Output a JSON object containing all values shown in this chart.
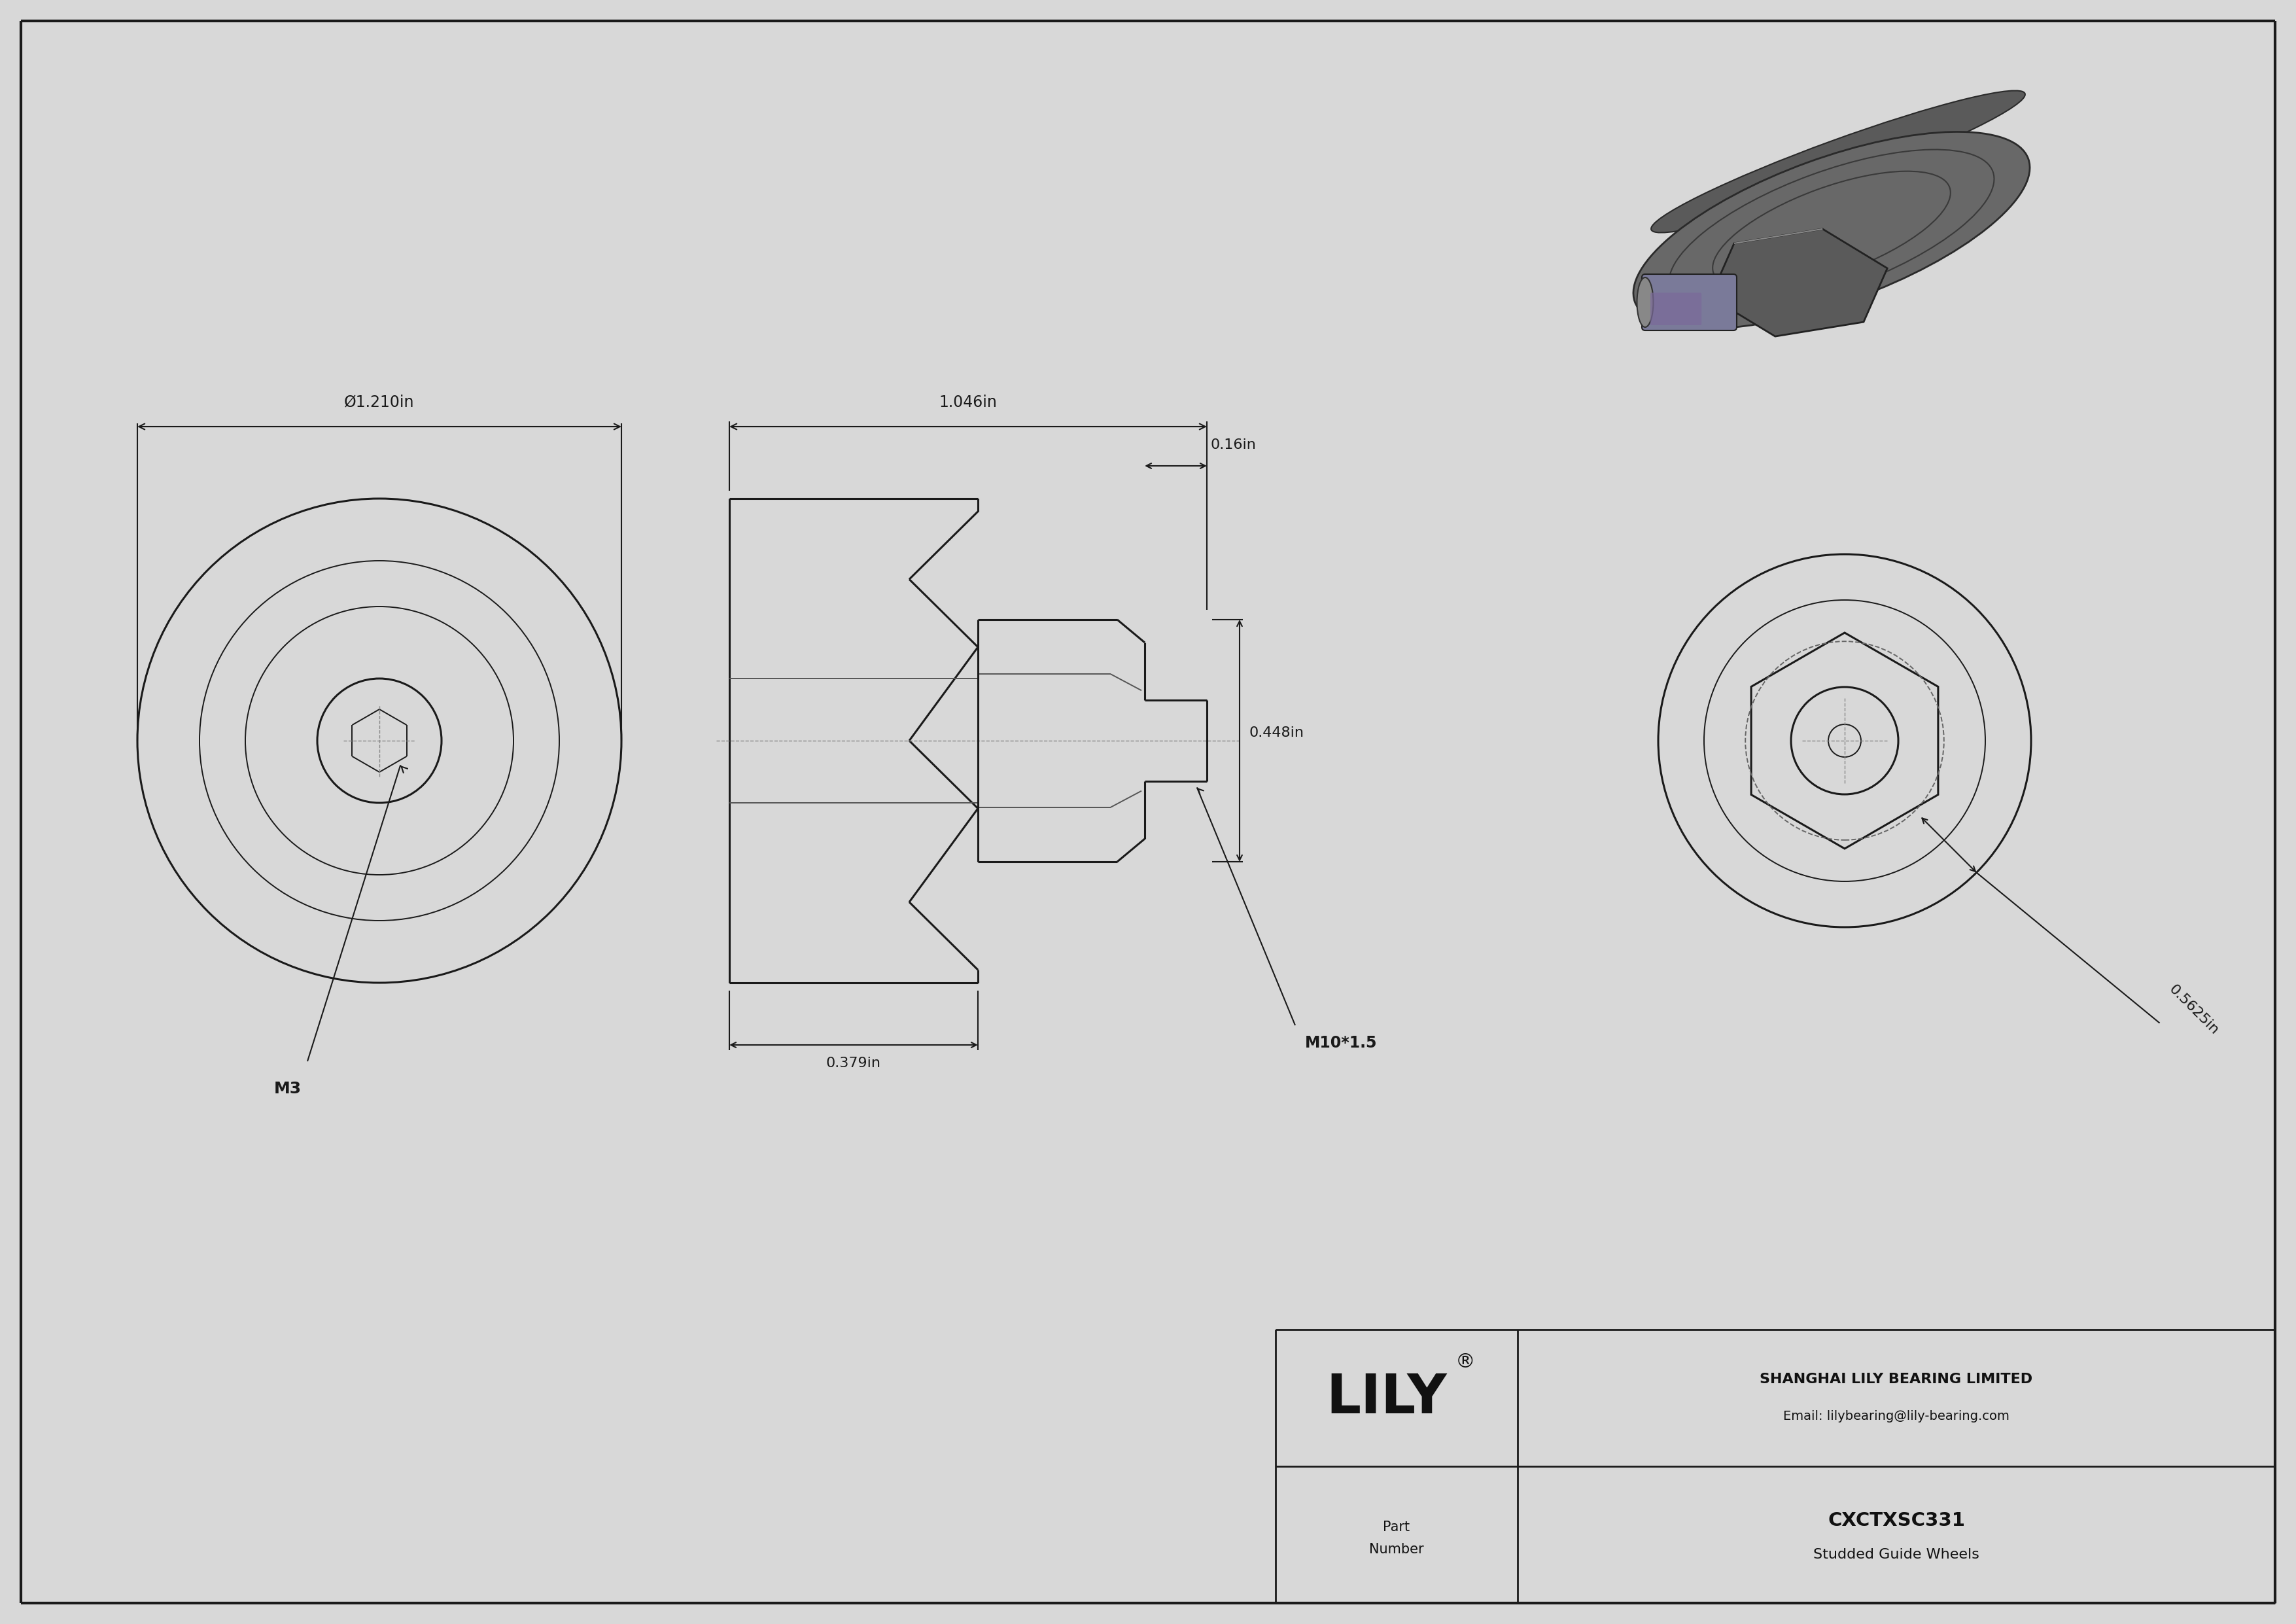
{
  "bg_color": "#d8d8d8",
  "drawing_bg": "#ffffff",
  "line_color": "#1a1a1a",
  "dim_color": "#1a1a1a",
  "company": "SHANGHAI LILY BEARING LIMITED",
  "email": "Email: lilybearing@lily-bearing.com",
  "part_number": "CXCTXSC331",
  "part_desc": "Studded Guide Wheels",
  "dim_diameter": "Ø1.210in",
  "dim_length": "1.046in",
  "dim_stud": "0.16in",
  "dim_nut": "0.448in",
  "dim_thread": "0.379in",
  "dim_thread_label": "M10*1.5",
  "dim_side": "0.5625in",
  "dim_m3": "M3"
}
